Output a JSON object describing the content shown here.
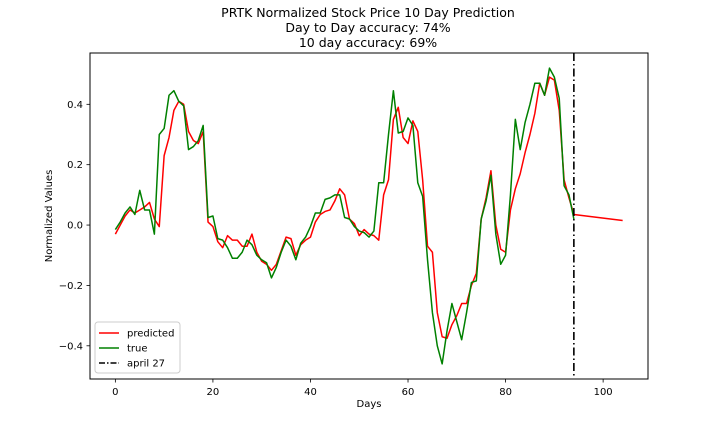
{
  "figure": {
    "title_lines": [
      "PRTK Normalized Stock Price 10 Day Prediction",
      "Day to Day accuracy: 74%",
      "10 day accuracy: 69%"
    ]
  },
  "chart_data": {
    "type": "line",
    "title": "PRTK Normalized Stock Price 10 Day Prediction",
    "subtitle": [
      "Day to Day accuracy: 74%",
      "10 day accuracy: 69%"
    ],
    "xlabel": "Days",
    "ylabel": "Normalized Values",
    "xlim": [
      -5.2,
      109.2
    ],
    "ylim": [
      -0.51,
      0.57
    ],
    "xticks": [
      0,
      20,
      40,
      60,
      80,
      100
    ],
    "xtick_labels": [
      "0",
      "20",
      "40",
      "60",
      "80",
      "100"
    ],
    "yticks": [
      -0.4,
      -0.2,
      0.0,
      0.2,
      0.4
    ],
    "ytick_labels": [
      "−0.4",
      "−0.2",
      "0.0",
      "0.2",
      "0.4"
    ],
    "grid": false,
    "legend_position": "lower-left",
    "series": [
      {
        "name": "predicted",
        "color": "#ff0000",
        "style": "solid",
        "x": [
          0,
          1,
          2,
          3,
          4,
          5,
          6,
          7,
          8,
          9,
          10,
          11,
          12,
          13,
          14,
          15,
          16,
          17,
          18,
          19,
          20,
          21,
          22,
          23,
          24,
          25,
          26,
          27,
          28,
          29,
          30,
          31,
          32,
          33,
          34,
          35,
          36,
          37,
          38,
          39,
          40,
          41,
          42,
          43,
          44,
          45,
          46,
          47,
          48,
          49,
          50,
          51,
          52,
          53,
          54,
          55,
          56,
          57,
          58,
          59,
          60,
          61,
          62,
          63,
          64,
          65,
          66,
          67,
          68,
          69,
          70,
          71,
          72,
          73,
          74,
          75,
          76,
          77,
          78,
          79,
          80,
          81,
          82,
          83,
          84,
          85,
          86,
          87,
          88,
          89,
          90,
          91,
          92,
          93,
          94,
          104
        ],
        "values": [
          -0.03,
          0.0,
          0.03,
          0.05,
          0.04,
          0.05,
          0.06,
          0.075,
          0.02,
          -0.005,
          0.23,
          0.29,
          0.38,
          0.41,
          0.4,
          0.31,
          0.28,
          0.27,
          0.31,
          0.01,
          -0.005,
          -0.055,
          -0.075,
          -0.035,
          -0.05,
          -0.05,
          -0.07,
          -0.07,
          -0.03,
          -0.09,
          -0.12,
          -0.13,
          -0.15,
          -0.13,
          -0.085,
          -0.04,
          -0.045,
          -0.1,
          -0.065,
          -0.05,
          -0.04,
          0.01,
          0.035,
          0.045,
          0.05,
          0.08,
          0.12,
          0.1,
          0.02,
          0.005,
          -0.035,
          -0.015,
          -0.03,
          -0.035,
          -0.05,
          0.1,
          0.15,
          0.35,
          0.39,
          0.29,
          0.27,
          0.345,
          0.31,
          0.15,
          -0.07,
          -0.09,
          -0.29,
          -0.37,
          -0.375,
          -0.33,
          -0.3,
          -0.26,
          -0.26,
          -0.2,
          -0.16,
          0.02,
          0.09,
          0.18,
          0.0,
          -0.08,
          -0.09,
          0.05,
          0.12,
          0.17,
          0.24,
          0.3,
          0.37,
          0.47,
          0.43,
          0.49,
          0.48,
          0.38,
          0.15,
          0.09,
          0.035,
          0.015
        ]
      },
      {
        "name": "true",
        "color": "#008000",
        "style": "solid",
        "x": [
          0,
          1,
          2,
          3,
          4,
          5,
          6,
          7,
          8,
          9,
          10,
          11,
          12,
          13,
          14,
          15,
          16,
          17,
          18,
          19,
          20,
          21,
          22,
          23,
          24,
          25,
          26,
          27,
          28,
          29,
          30,
          31,
          32,
          33,
          34,
          35,
          36,
          37,
          38,
          39,
          40,
          41,
          42,
          43,
          44,
          45,
          46,
          47,
          48,
          49,
          50,
          51,
          52,
          53,
          54,
          55,
          56,
          57,
          58,
          59,
          60,
          61,
          62,
          63,
          64,
          65,
          66,
          67,
          68,
          69,
          70,
          71,
          72,
          73,
          74,
          75,
          76,
          77,
          78,
          79,
          80,
          81,
          82,
          83,
          84,
          85,
          86,
          87,
          88,
          89,
          90,
          91,
          92,
          93,
          94
        ],
        "values": [
          -0.015,
          0.01,
          0.04,
          0.06,
          0.035,
          0.115,
          0.05,
          0.05,
          -0.03,
          0.3,
          0.32,
          0.43,
          0.445,
          0.41,
          0.395,
          0.25,
          0.26,
          0.28,
          0.33,
          0.025,
          0.03,
          -0.045,
          -0.05,
          -0.075,
          -0.11,
          -0.11,
          -0.09,
          -0.05,
          -0.065,
          -0.1,
          -0.115,
          -0.125,
          -0.175,
          -0.14,
          -0.09,
          -0.05,
          -0.07,
          -0.115,
          -0.06,
          -0.04,
          -0.005,
          0.04,
          0.04,
          0.085,
          0.09,
          0.1,
          0.1,
          0.025,
          0.02,
          -0.005,
          -0.02,
          -0.025,
          -0.04,
          -0.02,
          0.14,
          0.14,
          0.3,
          0.445,
          0.305,
          0.31,
          0.355,
          0.33,
          0.14,
          0.095,
          -0.115,
          -0.29,
          -0.4,
          -0.46,
          -0.35,
          -0.26,
          -0.32,
          -0.38,
          -0.29,
          -0.19,
          -0.185,
          0.02,
          0.08,
          0.165,
          -0.03,
          -0.13,
          -0.1,
          0.1,
          0.35,
          0.25,
          0.34,
          0.4,
          0.47,
          0.47,
          0.43,
          0.52,
          0.49,
          0.42,
          0.13,
          0.1,
          0.02
        ]
      },
      {
        "name": "april 27",
        "color": "#000000",
        "style": "dashdot",
        "vertical_x": 94
      }
    ]
  }
}
